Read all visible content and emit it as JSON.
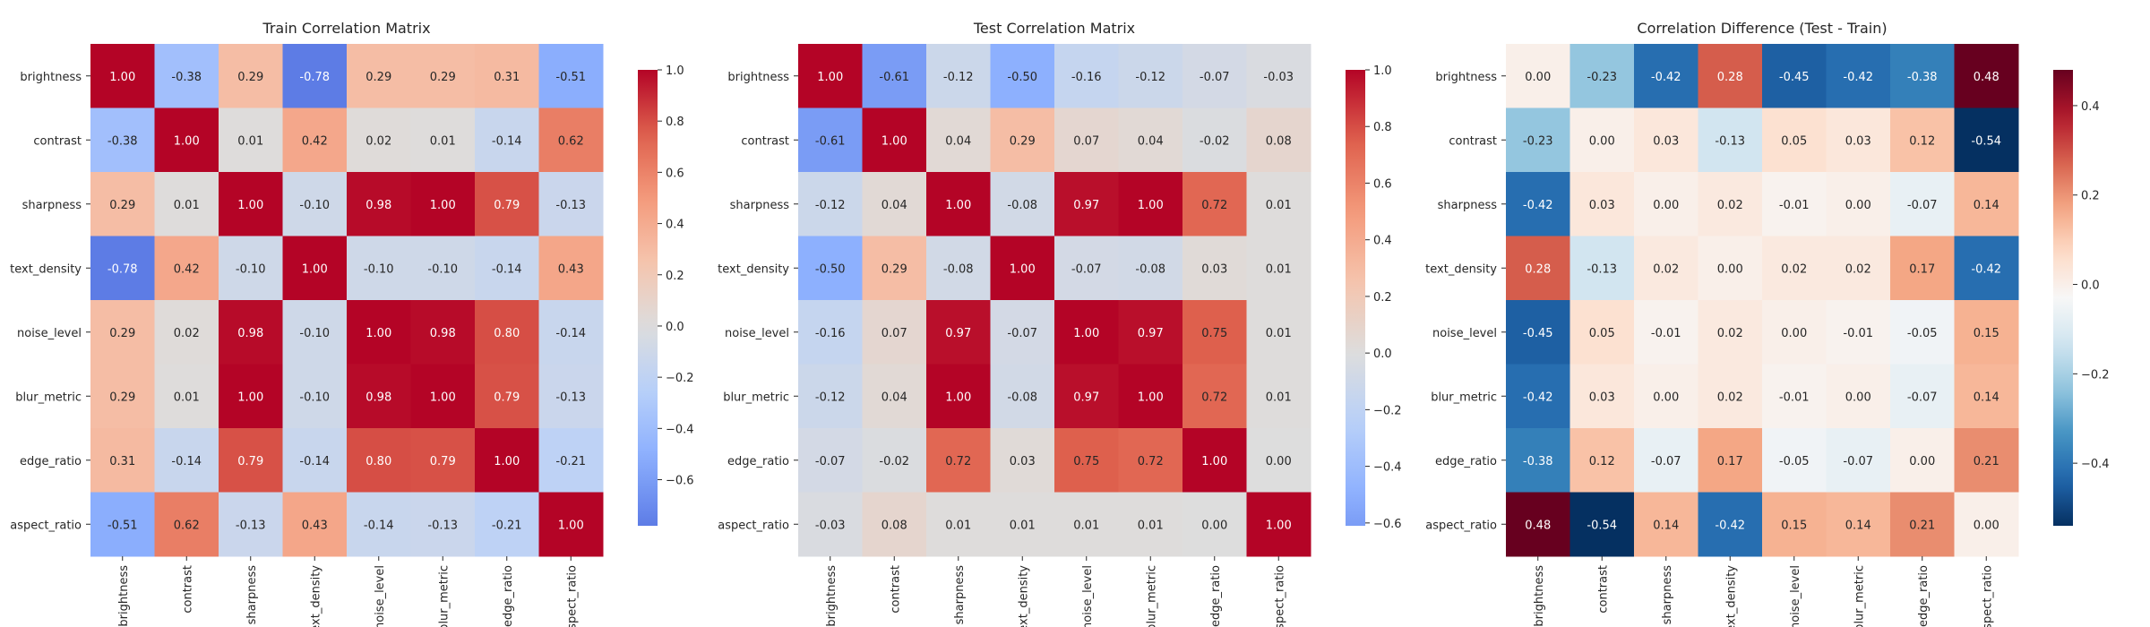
{
  "chart_data": [
    {
      "type": "heatmap",
      "title": "Train Correlation Matrix",
      "rows": [
        "brightness",
        "contrast",
        "sharpness",
        "text_density",
        "noise_level",
        "blur_metric",
        "edge_ratio",
        "aspect_ratio"
      ],
      "cols": [
        "brightness",
        "contrast",
        "sharpness",
        "text_density",
        "noise_level",
        "blur_metric",
        "edge_ratio",
        "aspect_ratio"
      ],
      "col_tick_labels": [
        "brightness",
        "contrast",
        "sharpness",
        "ext_density",
        "noise_level",
        "blur_metric",
        "edge_ratio",
        "aspect_ratio"
      ],
      "values": [
        [
          1.0,
          -0.38,
          0.29,
          -0.78,
          0.29,
          0.29,
          0.31,
          -0.51
        ],
        [
          -0.38,
          1.0,
          0.01,
          0.42,
          0.02,
          0.01,
          -0.14,
          0.62
        ],
        [
          0.29,
          0.01,
          1.0,
          -0.1,
          0.98,
          1.0,
          0.79,
          -0.13
        ],
        [
          -0.78,
          0.42,
          -0.1,
          1.0,
          -0.1,
          -0.1,
          -0.14,
          0.43
        ],
        [
          0.29,
          0.02,
          0.98,
          -0.1,
          1.0,
          0.98,
          0.8,
          -0.14
        ],
        [
          0.29,
          0.01,
          1.0,
          -0.1,
          0.98,
          1.0,
          0.79,
          -0.13
        ],
        [
          0.31,
          -0.14,
          0.79,
          -0.14,
          0.8,
          0.79,
          1.0,
          -0.21
        ],
        [
          -0.51,
          0.62,
          -0.13,
          0.43,
          -0.14,
          -0.13,
          -0.21,
          1.0
        ]
      ],
      "colormap": "coolwarm",
      "color_range": [
        -1.0,
        1.0
      ],
      "colorbar_range": [
        -0.78,
        1.0
      ],
      "colorbar_ticks": [
        -0.6,
        -0.4,
        -0.2,
        0.0,
        0.2,
        0.4,
        0.6,
        0.8,
        1.0
      ],
      "colorbar_tick_labels": [
        "−0.6",
        "−0.4",
        "−0.2",
        "0.0",
        "0.2",
        "0.4",
        "0.6",
        "0.8",
        "1.0"
      ]
    },
    {
      "type": "heatmap",
      "title": "Test Correlation Matrix",
      "rows": [
        "brightness",
        "contrast",
        "sharpness",
        "text_density",
        "noise_level",
        "blur_metric",
        "edge_ratio",
        "aspect_ratio"
      ],
      "cols": [
        "brightness",
        "contrast",
        "sharpness",
        "text_density",
        "noise_level",
        "blur_metric",
        "edge_ratio",
        "aspect_ratio"
      ],
      "col_tick_labels": [
        "brightness",
        "contrast",
        "sharpness",
        "ext_density",
        "noise_level",
        "blur_metric",
        "edge_ratio",
        "aspect_ratio"
      ],
      "values": [
        [
          1.0,
          -0.61,
          -0.12,
          -0.5,
          -0.16,
          -0.12,
          -0.07,
          -0.03
        ],
        [
          -0.61,
          1.0,
          0.04,
          0.29,
          0.07,
          0.04,
          -0.02,
          0.08
        ],
        [
          -0.12,
          0.04,
          1.0,
          -0.08,
          0.97,
          1.0,
          0.72,
          0.01
        ],
        [
          -0.5,
          0.29,
          -0.08,
          1.0,
          -0.07,
          -0.08,
          0.03,
          0.01
        ],
        [
          -0.16,
          0.07,
          0.97,
          -0.07,
          1.0,
          0.97,
          0.75,
          0.01
        ],
        [
          -0.12,
          0.04,
          1.0,
          -0.08,
          0.97,
          1.0,
          0.72,
          0.01
        ],
        [
          -0.07,
          -0.02,
          0.72,
          0.03,
          0.75,
          0.72,
          1.0,
          0.0
        ],
        [
          -0.03,
          0.08,
          0.01,
          0.01,
          0.01,
          0.01,
          0.0,
          1.0
        ]
      ],
      "colormap": "coolwarm",
      "color_range": [
        -1.0,
        1.0
      ],
      "colorbar_range": [
        -0.61,
        1.0
      ],
      "colorbar_ticks": [
        -0.6,
        -0.4,
        -0.2,
        0.0,
        0.2,
        0.4,
        0.6,
        0.8,
        1.0
      ],
      "colorbar_tick_labels": [
        "−0.6",
        "−0.4",
        "−0.2",
        "0.0",
        "0.2",
        "0.4",
        "0.6",
        "0.8",
        "1.0"
      ]
    },
    {
      "type": "heatmap",
      "title": "Correlation Difference (Test - Train)",
      "rows": [
        "brightness",
        "contrast",
        "sharpness",
        "text_density",
        "noise_level",
        "blur_metric",
        "edge_ratio",
        "aspect_ratio"
      ],
      "cols": [
        "brightness",
        "contrast",
        "sharpness",
        "text_density",
        "noise_level",
        "blur_metric",
        "edge_ratio",
        "aspect_ratio"
      ],
      "col_tick_labels": [
        "brightness",
        "contrast",
        "sharpness",
        "ext_density",
        "noise_level",
        "blur_metric",
        "edge_ratio",
        "aspect_ratio"
      ],
      "values": [
        [
          0.0,
          -0.23,
          -0.42,
          0.28,
          -0.45,
          -0.42,
          -0.38,
          0.48
        ],
        [
          -0.23,
          0.0,
          0.03,
          -0.13,
          0.05,
          0.03,
          0.12,
          -0.54
        ],
        [
          -0.42,
          0.03,
          0.0,
          0.02,
          -0.01,
          0.0,
          -0.07,
          0.14
        ],
        [
          0.28,
          -0.13,
          0.02,
          0.0,
          0.02,
          0.02,
          0.17,
          -0.42
        ],
        [
          -0.45,
          0.05,
          -0.01,
          0.02,
          0.0,
          -0.01,
          -0.05,
          0.15
        ],
        [
          -0.42,
          0.03,
          0.0,
          0.02,
          -0.01,
          0.0,
          -0.07,
          0.14
        ],
        [
          -0.38,
          0.12,
          -0.07,
          0.17,
          -0.05,
          -0.07,
          0.0,
          0.21
        ],
        [
          0.48,
          -0.54,
          0.14,
          -0.42,
          0.15,
          0.14,
          0.21,
          0.0
        ]
      ],
      "colormap": "RdBu_r",
      "color_range": [
        -0.54,
        0.48
      ],
      "colorbar_range": [
        -0.54,
        0.48
      ],
      "colorbar_ticks": [
        -0.4,
        -0.2,
        0.0,
        0.2,
        0.4
      ],
      "colorbar_tick_labels": [
        "−0.4",
        "−0.2",
        "0.0",
        "0.2",
        "0.4"
      ]
    }
  ]
}
